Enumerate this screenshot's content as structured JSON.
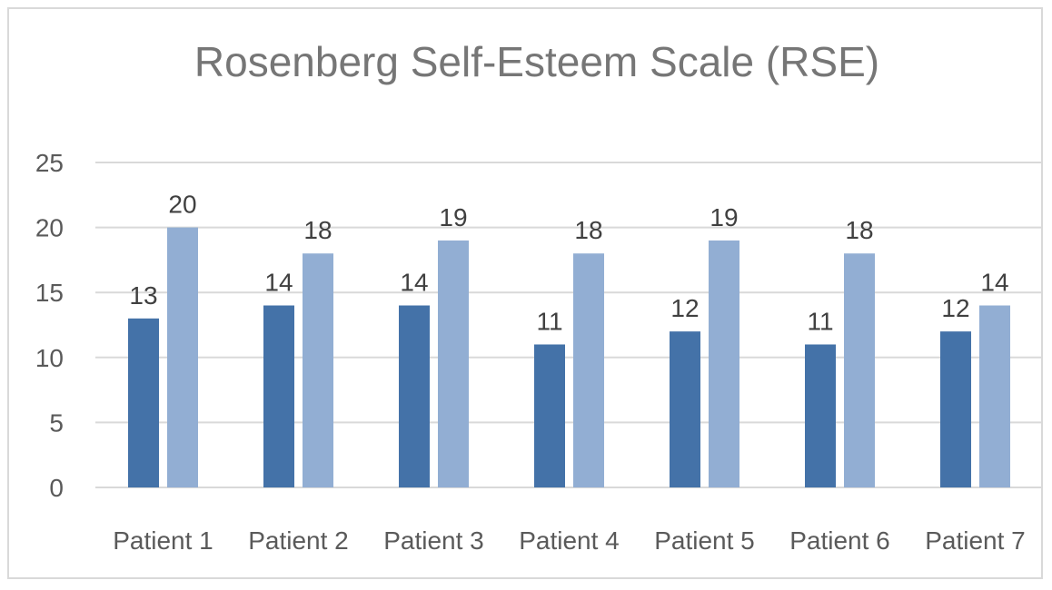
{
  "chart_data": {
    "type": "bar",
    "title": "Rosenberg Self-Esteem Scale (RSE)",
    "xlabel": "",
    "ylabel": "",
    "categories": [
      "Patient 1",
      "Patient 2",
      "Patient 3",
      "Patient 4",
      "Patient 5",
      "Patient 6",
      "Patient 7"
    ],
    "series": [
      {
        "values": [
          13,
          14,
          14,
          11,
          12,
          11,
          12
        ],
        "color": "#4472a8"
      },
      {
        "values": [
          20,
          18,
          19,
          18,
          19,
          18,
          14
        ],
        "color": "#92aed3"
      }
    ],
    "ylim": [
      0,
      25
    ],
    "yticks": [
      0,
      5,
      10,
      15,
      20,
      25
    ],
    "grid": true,
    "legend": "none",
    "data_labels": true
  }
}
